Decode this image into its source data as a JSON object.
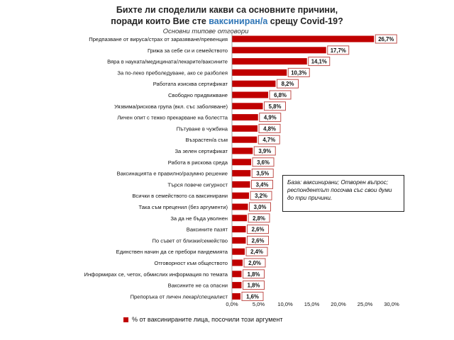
{
  "header": {
    "title_line1": "Бихте ли споделили какви са основните причини,",
    "title_line2_pre": "поради които Вие сте",
    "title_line2_highlight": "ваксиниран/а",
    "title_line2_post": "срещу Covid-19?",
    "subtitle": "Основни типове отговори"
  },
  "note": {
    "text": "База: ваксинирани; Отворен въпрос; респондентът посочва със свои думи до три причини."
  },
  "legend": {
    "label": "% от ваксинираните лица, посочили този аргумент"
  },
  "colors": {
    "bar": "#c00000",
    "label_border": "#c0504d",
    "highlight": "#2e75b6"
  },
  "chart_data": {
    "type": "bar",
    "orientation": "horizontal",
    "categories": [
      "Предпазване от вируса/страх от заразяване/превенция",
      "Грижа за себе си и семейството",
      "Вяра в науката/медицината/лекарите/ваксините",
      "За по-леко преболедуване,  ако се разболея",
      "Работата изисква сертификат",
      "Свободно придвижване",
      "Уязвима/рискова група (вкл. със заболяване)",
      "Личен опит с тежко  прекарване на болестта",
      "Пътуване в чужбина",
      "Възрастен/а съм",
      "За зелен сертификат",
      "Работа в рискова среда",
      "Ваксинацията е правилно/разумно решение",
      "Търся повече  сигурност",
      "Всички в семейството  са ваксинирани",
      "Така съм преценил  (без аргументи)",
      "За да не бъда уволнен",
      "Ваксините пазят",
      "По съвет от близки/семейство",
      "Единствен  начин да се пребори пандемията",
      "Отговорност към обществото",
      "Информирах се, четох, обмислих информация по темата",
      "Ваксините не са опасни",
      "Препоръка от личен лекар/специалист"
    ],
    "values": [
      26.7,
      17.7,
      14.1,
      10.3,
      8.2,
      6.8,
      5.8,
      4.9,
      4.8,
      4.7,
      3.9,
      3.6,
      3.5,
      3.4,
      3.2,
      3.0,
      2.8,
      2.6,
      2.6,
      2.4,
      2.0,
      1.8,
      1.8,
      1.6
    ],
    "value_labels": [
      "26,7%",
      "17,7%",
      "14,1%",
      "10,3%",
      "8,2%",
      "6,8%",
      "5,8%",
      "4,9%",
      "4,8%",
      "4,7%",
      "3,9%",
      "3,6%",
      "3,5%",
      "3,4%",
      "3,2%",
      "3,0%",
      "2,8%",
      "2,6%",
      "2,6%",
      "2,4%",
      "2,0%",
      "1,8%",
      "1,8%",
      "1,6%"
    ],
    "xlim": [
      0,
      30
    ],
    "x_ticks": [
      0,
      5,
      10,
      15,
      20,
      25,
      30
    ],
    "x_tick_labels": [
      "0,0%",
      "5,0%",
      "10,0%",
      "15,0%",
      "20,0%",
      "25,0%",
      "30,0%"
    ],
    "series_name": "% от ваксинираните лица, посочили този аргумент",
    "legend_position": "bottom",
    "grid": false
  }
}
